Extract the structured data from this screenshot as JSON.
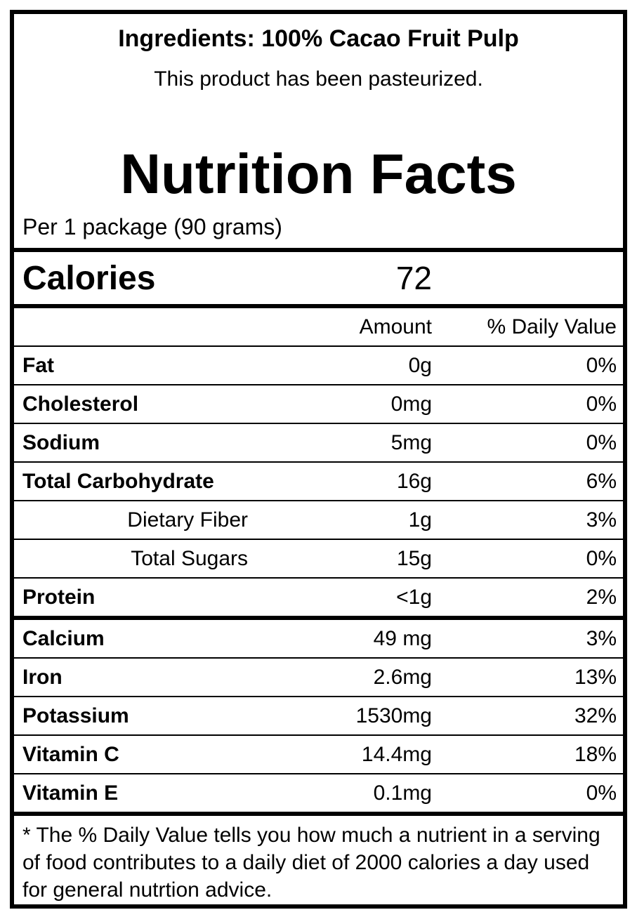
{
  "header": {
    "ingredients": "Ingredients: 100% Cacao Fruit Pulp",
    "note": "This product has been pasteurized.",
    "title": "Nutrition Facts",
    "serving": "Per 1 package (90 grams)"
  },
  "calories": {
    "label": "Calories",
    "value": 72
  },
  "table": {
    "columns": [
      "Amount",
      "% Daily Value"
    ],
    "sections": [
      [
        {
          "name": "Fat",
          "amount": "0g",
          "dv": "0%"
        },
        {
          "name": "Cholesterol",
          "amount": "0mg",
          "dv": "0%"
        },
        {
          "name": "Sodium",
          "amount": "5mg",
          "dv": "0%"
        },
        {
          "name": "Total Carbohydrate",
          "amount": "16g",
          "dv": "6%",
          "subrows": [
            {
              "name": "Dietary Fiber",
              "amount": "1g",
              "dv": "3%"
            },
            {
              "name": "Total Sugars",
              "amount": "15g",
              "dv": "0%"
            }
          ]
        },
        {
          "name": "Protein",
          "amount": "<1g",
          "dv": "2%"
        }
      ],
      [
        {
          "name": "Calcium",
          "amount": "49 mg",
          "dv": "3%"
        },
        {
          "name": "Iron",
          "amount": "2.6mg",
          "dv": "13%"
        },
        {
          "name": "Potassium",
          "amount": "1530mg",
          "dv": "32%"
        },
        {
          "name": "Vitamin C",
          "amount": "14.4mg",
          "dv": "18%"
        },
        {
          "name": "Vitamin E",
          "amount": "0.1mg",
          "dv": "0%"
        }
      ]
    ]
  },
  "footnote": "* The % Daily Value tells you how much a nutrient in a serving of food contributes to a daily diet of 2000 calories a day used for general nutrtion advice."
}
